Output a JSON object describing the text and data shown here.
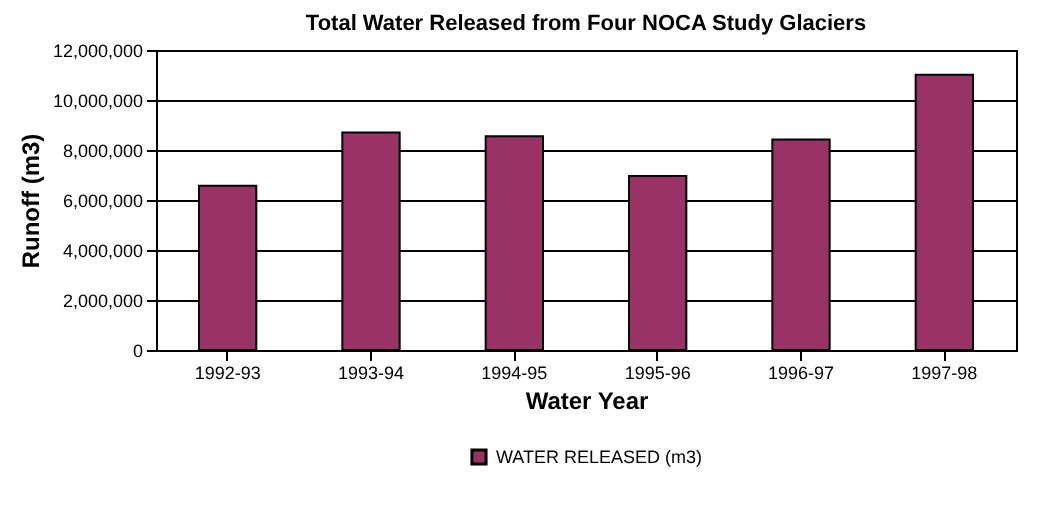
{
  "chart_data": {
    "type": "bar",
    "title": "Total Water Released from Four NOCA Study Glaciers",
    "xlabel": "Water Year",
    "ylabel": "Runoff (m3)",
    "categories": [
      "1992-93",
      "1993-94",
      "1994-95",
      "1995-96",
      "1996-97",
      "1997-98"
    ],
    "series": [
      {
        "name": "WATER RELEASED (m3)",
        "color": "#993366",
        "values": [
          6570000,
          8700000,
          8550000,
          6960000,
          8420000,
          11010000
        ]
      }
    ],
    "ylim": [
      0,
      12000000
    ],
    "yticks": [
      0,
      {
        "value": 2000000,
        "label": "2,000,000"
      },
      {
        "value": 4000000,
        "label": "4,000,000"
      },
      {
        "value": 6000000,
        "label": "6,000,000"
      },
      {
        "value": 8000000,
        "label": "8,000,000"
      },
      {
        "value": 10000000,
        "label": "10,000,000"
      },
      {
        "value": 12000000,
        "label": "12,000,000"
      }
    ],
    "grid": "y",
    "legend": "bottom"
  }
}
